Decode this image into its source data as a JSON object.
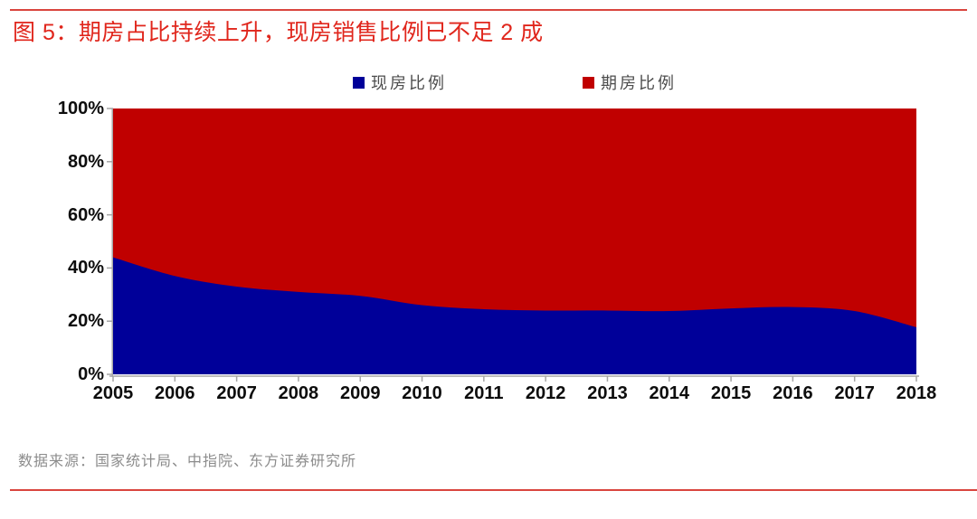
{
  "page": {
    "title": "图 5：期房占比持续上升，现房销售比例已不足 2 成",
    "source": "数据来源：国家统计局、中指院、东方证券研究所"
  },
  "colors": {
    "title_red": "#e0261c",
    "rule_red": "#d9453e",
    "existing_home_blue": "#000099",
    "presale_home_red": "#c00000",
    "legend_text": "#4d4d4d",
    "axis_text": "#0d0d0d",
    "axis_line": "#a6a6a6",
    "source_text": "#8c8c8c"
  },
  "chart_data": {
    "type": "area",
    "stacked": true,
    "unit": "%",
    "title": "",
    "xlabel": "",
    "ylabel": "",
    "categories": [
      "2005",
      "2006",
      "2007",
      "2008",
      "2009",
      "2010",
      "2011",
      "2012",
      "2013",
      "2014",
      "2015",
      "2016",
      "2017",
      "2018"
    ],
    "series": [
      {
        "name": "现房比例",
        "color": "#000099",
        "values": [
          44,
          37,
          33,
          31,
          29.5,
          26,
          24.5,
          24,
          24,
          23.8,
          24.8,
          25.3,
          23.8,
          17.7
        ]
      },
      {
        "name": "期房比例",
        "color": "#c00000",
        "values": [
          56,
          63,
          67,
          69,
          70.5,
          74,
          75.5,
          76,
          76,
          76.2,
          75.2,
          74.7,
          76.2,
          82.3
        ]
      }
    ],
    "ylim": [
      0,
      100
    ],
    "yticks": [
      "0%",
      "20%",
      "40%",
      "60%",
      "80%",
      "100%"
    ],
    "ytick_values": [
      0,
      20,
      40,
      60,
      80,
      100
    ],
    "legend_position": "top-center",
    "grid": false
  }
}
